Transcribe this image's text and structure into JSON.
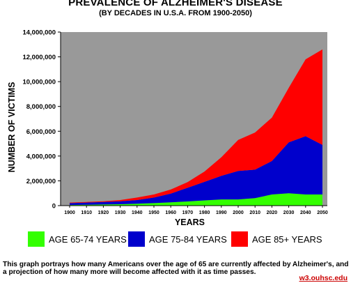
{
  "chart_data": {
    "type": "area",
    "stacked": true,
    "title": "PREVALENCE OF ALZHEIMER'S DISEASE",
    "subtitle": "(BY DECADES IN U.S.A. FROM 1900-2050)",
    "xlabel": "YEARS",
    "ylabel": "NUMBER OF VICTIMS",
    "ylim": [
      0,
      14000000
    ],
    "yticks": [
      "0",
      "2,000,000",
      "4,000,000",
      "6,000,000",
      "8,000,000",
      "10,000,000",
      "12,000,000",
      "14,000,000"
    ],
    "ytick_values": [
      0,
      2000000,
      4000000,
      6000000,
      8000000,
      10000000,
      12000000,
      14000000
    ],
    "categories": [
      "1900",
      "1910",
      "1920",
      "1930",
      "1940",
      "1950",
      "1960",
      "1970",
      "1980",
      "1990",
      "2000",
      "2010",
      "2020",
      "2030",
      "2040",
      "2050"
    ],
    "series": [
      {
        "name": "AGE 65-74 YEARS",
        "color": "#33ff00",
        "values": [
          50000,
          70000,
          90000,
          110000,
          150000,
          200000,
          270000,
          340000,
          420000,
          500000,
          500000,
          600000,
          900000,
          1000000,
          900000,
          900000
        ]
      },
      {
        "name": "AGE 75-84 YEARS",
        "color": "#0000cc",
        "values": [
          150000,
          180000,
          200000,
          240000,
          300000,
          450000,
          700000,
          1100000,
          1500000,
          1900000,
          2300000,
          2300000,
          2700000,
          4100000,
          4700000,
          4000000
        ]
      },
      {
        "name": "AGE 85+ YEARS",
        "color": "#ff0000",
        "values": [
          50000,
          50000,
          60000,
          100000,
          200000,
          250000,
          330000,
          460000,
          830000,
          1500000,
          2500000,
          3000000,
          3500000,
          4400000,
          6200000,
          7700000
        ]
      }
    ],
    "plot_background": "#999999",
    "grid": false
  },
  "caption": "This graph portrays how many Americans over the age of 65 are currently affected by Alzheimer's, and a projection of how many more will become affected with it as time passes.",
  "credit": "w3.ouhsc.edu"
}
